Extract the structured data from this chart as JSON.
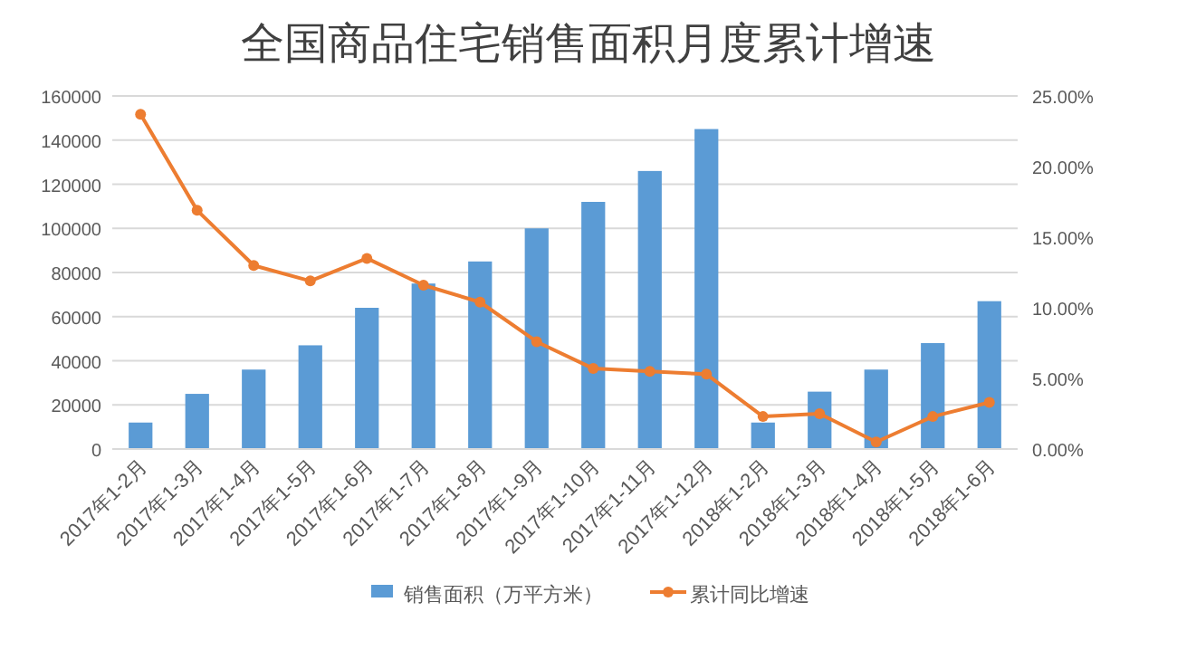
{
  "chart_data": {
    "type": "bar",
    "title": "全国商品住宅销售面积月度累计增速",
    "categories": [
      "2017年1-2月",
      "2017年1-3月",
      "2017年1-4月",
      "2017年1-5月",
      "2017年1-6月",
      "2017年1-7月",
      "2017年1-8月",
      "2017年1-9月",
      "2017年1-10月",
      "2017年1-11月",
      "2017年1-12月",
      "2018年1-2月",
      "2018年1-3月",
      "2018年1-4月",
      "2018年1-5月",
      "2018年1-6月"
    ],
    "series": [
      {
        "name": "销售面积（万平方米）",
        "color": "#5b9bd5",
        "values": [
          12000,
          25000,
          36000,
          47000,
          64000,
          75000,
          85000,
          100000,
          112000,
          126000,
          145000,
          12000,
          26000,
          36000,
          48000,
          67000
        ]
      },
      {
        "name": "累计同比增速",
        "type": "line",
        "axis": "y2",
        "color": "#ed7d31",
        "marker": "circle",
        "values": [
          23.7,
          16.9,
          13.0,
          11.9,
          13.5,
          11.6,
          10.4,
          7.6,
          5.7,
          5.5,
          5.3,
          2.3,
          2.5,
          0.5,
          2.3,
          3.3
        ]
      }
    ],
    "ylim": [
      0,
      160000
    ],
    "yticks": [
      0,
      20000,
      40000,
      60000,
      80000,
      100000,
      120000,
      140000,
      160000
    ],
    "y2lim": [
      0,
      25
    ],
    "y2ticks": [
      {
        "value": 0,
        "label": "0.00%"
      },
      {
        "value": 5,
        "label": "5.00%"
      },
      {
        "value": 10,
        "label": "10.00%"
      },
      {
        "value": 15,
        "label": "15.00%"
      },
      {
        "value": 20,
        "label": "20.00%"
      },
      {
        "value": 25,
        "label": "25.00%"
      }
    ],
    "grid": "y",
    "legend": "bottom"
  }
}
